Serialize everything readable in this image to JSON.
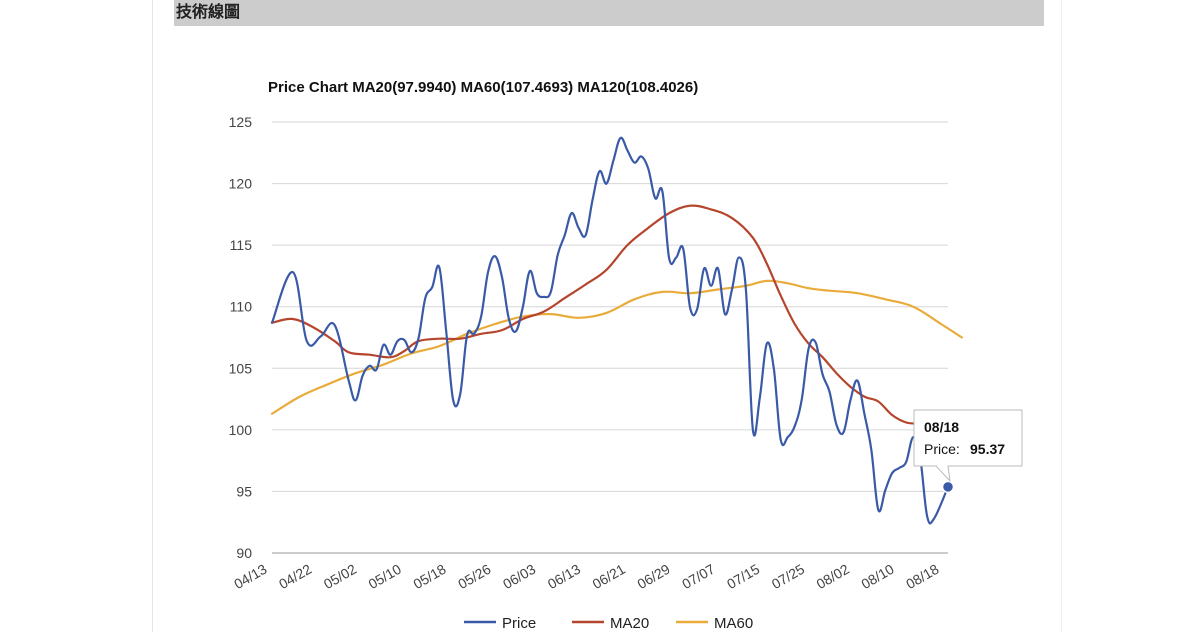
{
  "panel": {
    "title": "技術線圖"
  },
  "chart_data": {
    "type": "line",
    "title": "Price Chart MA20(97.9940) MA60(107.4693) MA120(108.4026)",
    "xlabel": "",
    "ylabel": "",
    "ylim": [
      90,
      125
    ],
    "yticks": [
      "125",
      "120",
      "115",
      "110",
      "105",
      "100",
      "95",
      "90"
    ],
    "x_tick_labels": [
      "04/13",
      "04/22",
      "05/02",
      "05/10",
      "05/18",
      "05/26",
      "06/03",
      "06/13",
      "06/21",
      "06/29",
      "07/07",
      "07/15",
      "07/25",
      "08/02",
      "08/10",
      "08/18"
    ],
    "grid": true,
    "legend_position": "bottom",
    "n_points": 89,
    "series": [
      {
        "name": "Price",
        "color": "#3a5aa8",
        "points": [
          [
            0,
            108.7
          ],
          [
            3,
            112.8
          ],
          [
            5,
            107.2
          ],
          [
            7,
            107.6
          ],
          [
            9,
            108.5
          ],
          [
            11,
            104.0
          ],
          [
            12,
            102.4
          ],
          [
            13,
            104.4
          ],
          [
            14,
            105.2
          ],
          [
            15,
            104.9
          ],
          [
            16,
            106.9
          ],
          [
            17,
            106.1
          ],
          [
            18,
            107.2
          ],
          [
            19,
            107.3
          ],
          [
            20,
            106.3
          ],
          [
            21,
            107.4
          ],
          [
            22,
            110.7
          ],
          [
            23,
            111.6
          ],
          [
            24,
            113.2
          ],
          [
            25,
            108.0
          ],
          [
            26,
            102.4
          ],
          [
            27,
            102.9
          ],
          [
            28,
            107.7
          ],
          [
            29,
            107.8
          ],
          [
            30,
            109.2
          ],
          [
            31,
            112.8
          ],
          [
            32,
            114.1
          ],
          [
            33,
            112.4
          ],
          [
            34,
            109.0
          ],
          [
            35,
            108.0
          ],
          [
            36,
            110.0
          ],
          [
            37,
            112.9
          ],
          [
            38,
            111.1
          ],
          [
            39,
            110.8
          ],
          [
            40,
            111.2
          ],
          [
            41,
            114.2
          ],
          [
            42,
            115.8
          ],
          [
            43,
            117.6
          ],
          [
            44,
            116.4
          ],
          [
            45,
            115.8
          ],
          [
            46,
            118.7
          ],
          [
            47,
            121.0
          ],
          [
            48,
            120.0
          ],
          [
            49,
            121.9
          ],
          [
            50,
            123.7
          ],
          [
            51,
            122.7
          ],
          [
            52,
            121.7
          ],
          [
            53,
            122.2
          ],
          [
            54,
            121.2
          ],
          [
            55,
            118.8
          ],
          [
            56,
            119.4
          ],
          [
            57,
            113.9
          ],
          [
            58,
            114.0
          ],
          [
            59,
            114.7
          ],
          [
            60,
            109.9
          ],
          [
            61,
            109.8
          ],
          [
            62,
            113.1
          ],
          [
            63,
            111.7
          ],
          [
            64,
            113.1
          ],
          [
            65,
            109.4
          ],
          [
            66,
            111.4
          ],
          [
            67,
            114.0
          ],
          [
            68,
            111.4
          ],
          [
            69,
            100.0
          ],
          [
            70,
            102.6
          ],
          [
            71,
            107.0
          ],
          [
            72,
            105.0
          ],
          [
            73,
            99.2
          ],
          [
            74,
            99.4
          ],
          [
            75,
            100.3
          ],
          [
            76,
            102.4
          ],
          [
            77,
            106.6
          ],
          [
            78,
            107.1
          ],
          [
            79,
            104.5
          ],
          [
            80,
            103.1
          ],
          [
            81,
            100.4
          ],
          [
            82,
            99.8
          ],
          [
            83,
            102.4
          ],
          [
            84,
            104.0
          ],
          [
            85,
            101.3
          ],
          [
            86,
            98.4
          ],
          [
            87,
            93.5
          ],
          [
            88,
            95.1
          ],
          [
            89,
            96.5
          ],
          [
            90,
            96.9
          ],
          [
            91,
            97.4
          ],
          [
            92,
            99.4
          ],
          [
            93,
            97.8
          ],
          [
            94,
            93.0
          ],
          [
            95,
            92.8
          ],
          [
            97,
            95.37
          ]
        ]
      },
      {
        "name": "MA20",
        "color": "#b5452c",
        "points": [
          [
            0,
            108.7
          ],
          [
            3,
            109.0
          ],
          [
            6,
            108.3
          ],
          [
            9,
            107.2
          ],
          [
            11,
            106.3
          ],
          [
            14,
            106.1
          ],
          [
            17,
            105.9
          ],
          [
            19,
            106.4
          ],
          [
            21,
            107.2
          ],
          [
            24,
            107.4
          ],
          [
            27,
            107.4
          ],
          [
            30,
            107.8
          ],
          [
            33,
            108.1
          ],
          [
            36,
            109.0
          ],
          [
            39,
            109.6
          ],
          [
            42,
            110.7
          ],
          [
            45,
            111.8
          ],
          [
            48,
            113.0
          ],
          [
            51,
            115.0
          ],
          [
            54,
            116.4
          ],
          [
            57,
            117.6
          ],
          [
            60,
            118.2
          ],
          [
            63,
            117.9
          ],
          [
            66,
            117.2
          ],
          [
            69,
            115.6
          ],
          [
            71,
            113.5
          ],
          [
            73,
            110.9
          ],
          [
            75,
            108.6
          ],
          [
            77,
            107.0
          ],
          [
            79,
            105.9
          ],
          [
            81,
            104.6
          ],
          [
            83,
            103.5
          ],
          [
            85,
            102.7
          ],
          [
            87,
            102.3
          ],
          [
            89,
            101.2
          ],
          [
            91,
            100.6
          ],
          [
            93,
            100.5
          ],
          [
            95,
            100.4
          ]
        ]
      },
      {
        "name": "MA60",
        "color": "#e9ab3a",
        "points": [
          [
            0,
            101.3
          ],
          [
            4,
            102.7
          ],
          [
            8,
            103.7
          ],
          [
            12,
            104.6
          ],
          [
            16,
            105.3
          ],
          [
            20,
            106.2
          ],
          [
            24,
            106.8
          ],
          [
            28,
            107.8
          ],
          [
            32,
            108.6
          ],
          [
            36,
            109.2
          ],
          [
            40,
            109.4
          ],
          [
            44,
            109.1
          ],
          [
            48,
            109.5
          ],
          [
            52,
            110.6
          ],
          [
            56,
            111.2
          ],
          [
            60,
            111.1
          ],
          [
            64,
            111.4
          ],
          [
            68,
            111.7
          ],
          [
            71,
            112.1
          ],
          [
            74,
            111.9
          ],
          [
            77,
            111.5
          ],
          [
            80,
            111.3
          ],
          [
            84,
            111.1
          ],
          [
            88,
            110.6
          ],
          [
            92,
            110.0
          ],
          [
            96,
            108.6
          ],
          [
            99,
            107.5
          ]
        ]
      }
    ],
    "tooltip": {
      "date": "08/18",
      "label": "Price:",
      "value": "95.37",
      "series": "Price",
      "x_index": 97
    }
  }
}
